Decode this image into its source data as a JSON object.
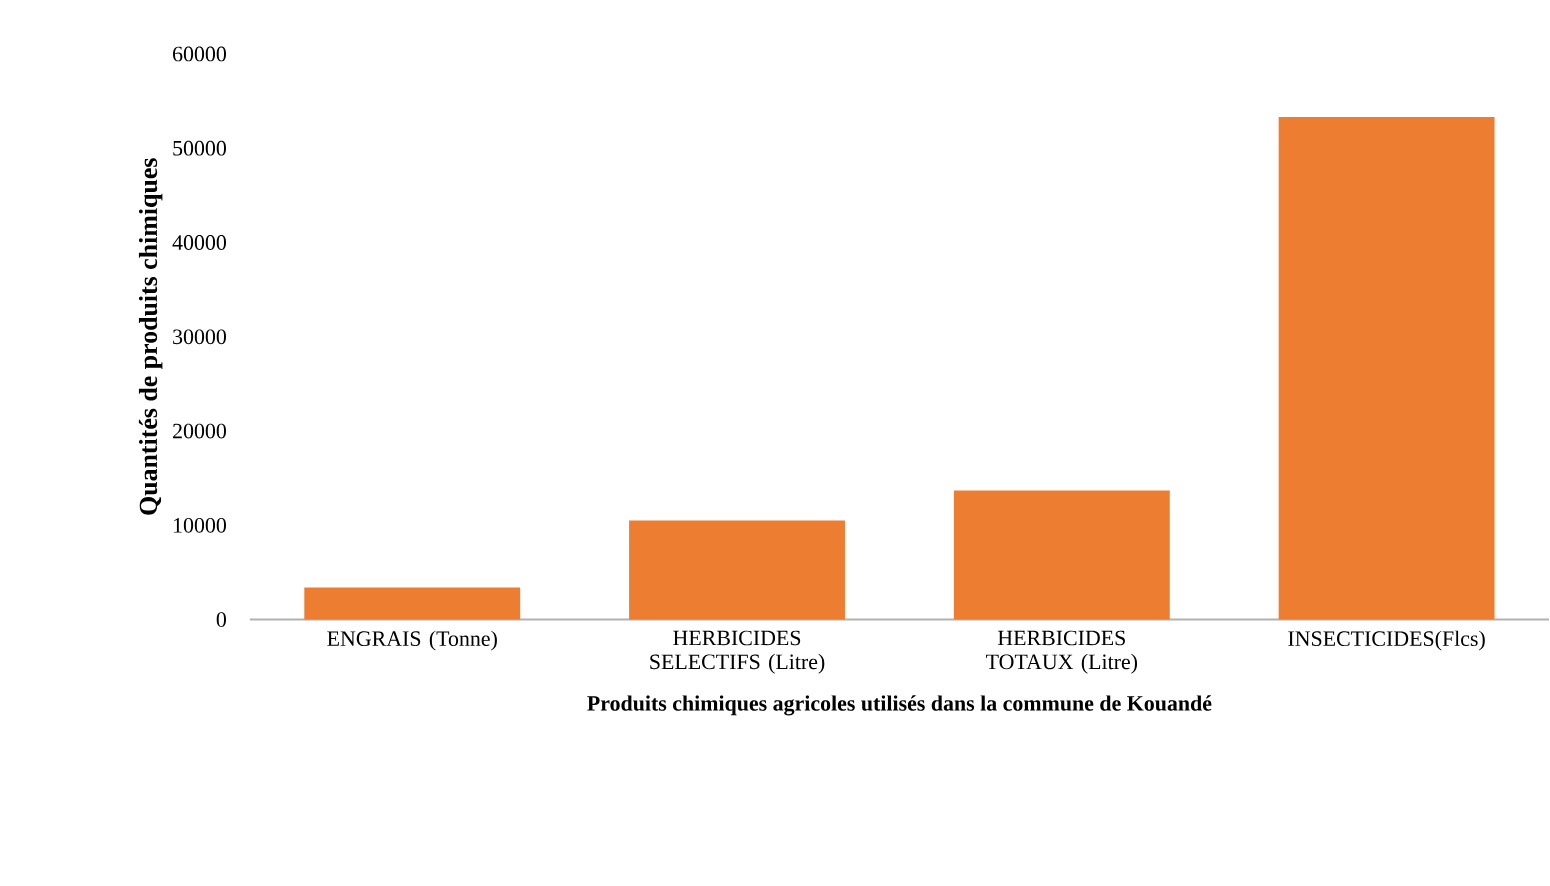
{
  "chart_data": {
    "type": "bar",
    "xlabel": "Produits chimiques agricoles utilisés dans la commune de Kouandé",
    "ylabel": "Quantités de produits chimiques",
    "categories": [
      "ENGRAIS (Tonne)",
      "HERBICIDES SELECTIFS (Litre)",
      "HERBICIDES TOTAUX (Litre)",
      "INSECTICIDES(Flcs)"
    ],
    "values": [
      3400,
      10500,
      13700,
      53300
    ],
    "color": "#ed7d31",
    "ylim": [
      0,
      60000
    ],
    "yticks": [
      0,
      10000,
      20000,
      30000,
      40000,
      50000,
      60000
    ],
    "grid": false
  }
}
